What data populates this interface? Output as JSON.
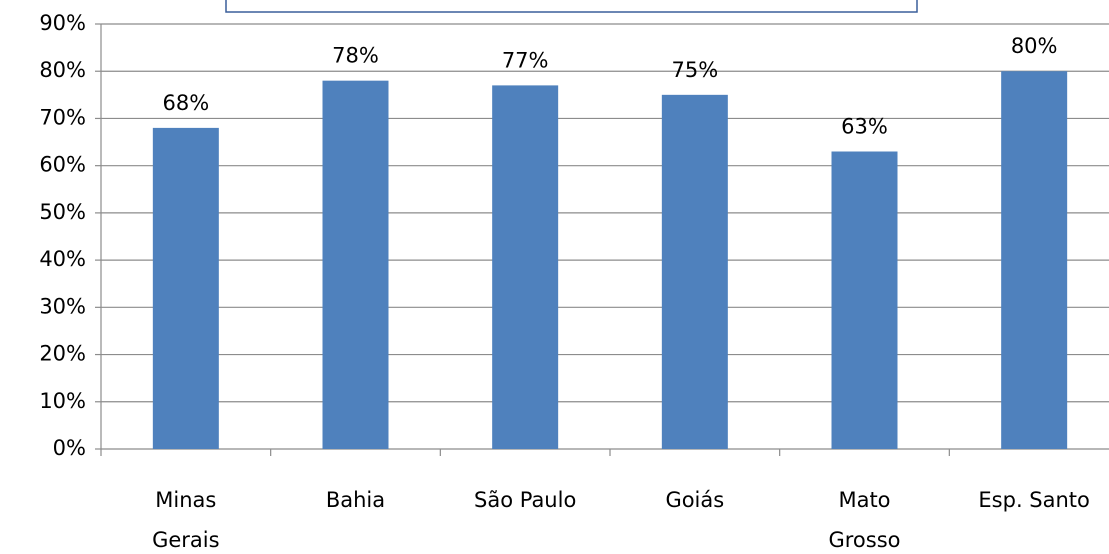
{
  "chart_data": {
    "type": "bar",
    "categories": [
      "Minas\nGerais",
      "Bahia",
      "São Paulo",
      "Goiás",
      "Mato\nGrosso",
      "Esp. Santo"
    ],
    "values": [
      68,
      78,
      77,
      75,
      63,
      80
    ],
    "value_labels": [
      "68%",
      "78%",
      "77%",
      "75%",
      "63%",
      "80%"
    ],
    "color": "#4f81bd",
    "ylim": [
      0,
      90
    ],
    "yticks": [
      {
        "value": 0,
        "label": "0%"
      },
      {
        "value": 10,
        "label": "10%"
      },
      {
        "value": 20,
        "label": "20%"
      },
      {
        "value": 30,
        "label": "30%"
      },
      {
        "value": 40,
        "label": "40%"
      },
      {
        "value": 50,
        "label": "50%"
      },
      {
        "value": 60,
        "label": "60%"
      },
      {
        "value": 70,
        "label": "70%"
      },
      {
        "value": 80,
        "label": "80%"
      },
      {
        "value": 90,
        "label": "90%"
      }
    ],
    "grid": true
  }
}
